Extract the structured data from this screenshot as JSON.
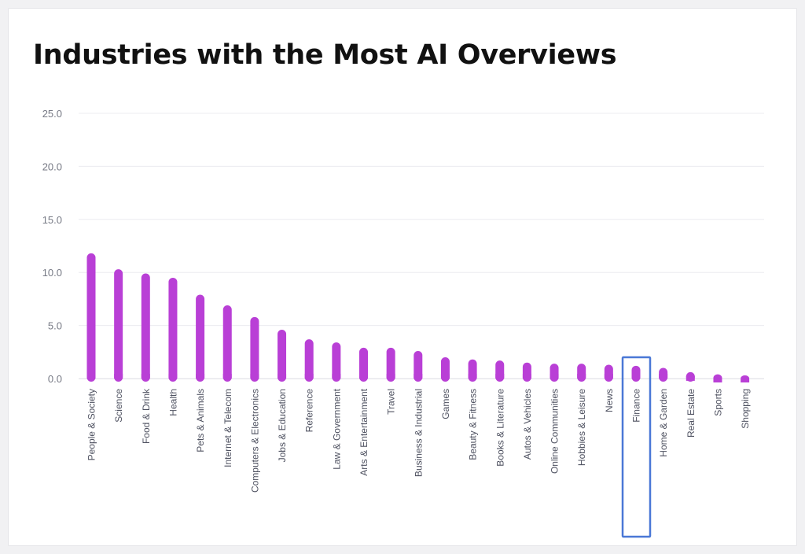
{
  "chart_data": {
    "type": "bar",
    "title": "Industries with the Most AI Overviews",
    "xlabel": "",
    "ylabel": "",
    "ylim": [
      0,
      25
    ],
    "yticks": [
      "0.0",
      "5.0",
      "10.0",
      "15.0",
      "20.0",
      "25.0"
    ],
    "grid": true,
    "bar_color": "#b93fd6",
    "categories": [
      "People & Society",
      "Science",
      "Food & Drink",
      "Health",
      "Pets & Animals",
      "Internet & Telecom",
      "Computers & Electronics",
      "Jobs & Education",
      "Reference",
      "Law & Government",
      "Arts & Entertainment",
      "Travel",
      "Business & Industrial",
      "Games",
      "Beauty & Fitness",
      "Books & Literature",
      "Autos & Vehicles",
      "Online Communities",
      "Hobbies & Leisure",
      "News",
      "Finance",
      "Home & Garden",
      "Real Estate",
      "Sports",
      "Shopping"
    ],
    "values": [
      11.8,
      10.3,
      9.9,
      9.5,
      7.9,
      6.9,
      5.8,
      4.6,
      3.7,
      3.4,
      2.9,
      2.9,
      2.6,
      2.0,
      1.8,
      1.7,
      1.5,
      1.4,
      1.4,
      1.3,
      1.2,
      1.0,
      0.6,
      0.4,
      0.3
    ],
    "highlighted_category": "Finance",
    "highlight_color": "#4a78d6"
  }
}
